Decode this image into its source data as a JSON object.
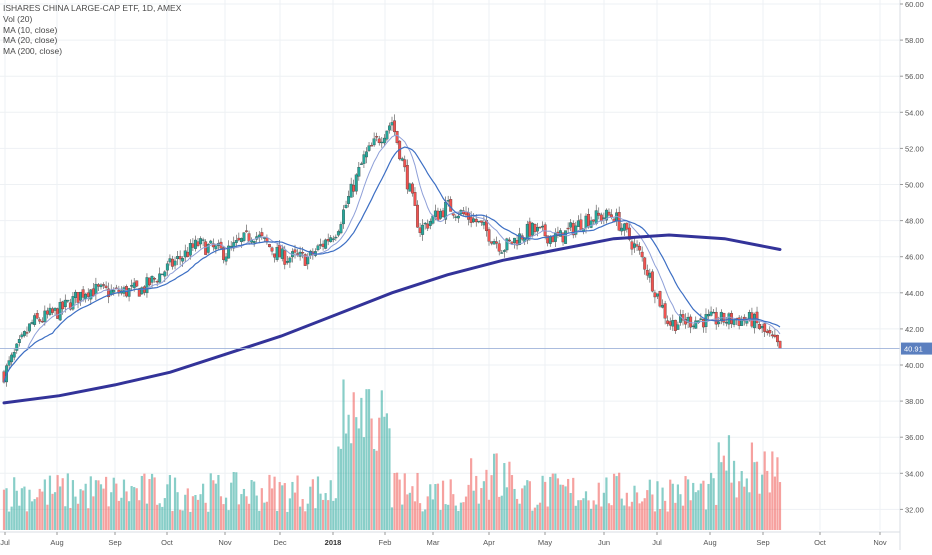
{
  "chart_data": {
    "type": "candlestick",
    "title": "ISHARES CHINA LARGE-CAP ETF, 1D, AMEX",
    "legend": [
      "Vol (20)",
      "MA (10, close)",
      "MA (20, close)",
      "MA (200, close)"
    ],
    "price_axis": {
      "min": 39,
      "max": 60.4,
      "ticks": [
        "40.00",
        "42.00",
        "44.00",
        "46.00",
        "48.00",
        "50.00",
        "52.00",
        "54.00",
        "56.00",
        "58.00",
        "60.00"
      ],
      "secondary_ticks": [
        "32.00",
        "34.00",
        "36.00",
        "38.00"
      ]
    },
    "last_price_label": "40.91",
    "last_price": 40.91,
    "x_axis_labels": [
      "Jul",
      "Aug",
      "Sep",
      "Oct",
      "Nov",
      "Dec",
      "2018",
      "Feb",
      "Mar",
      "Apr",
      "May",
      "Jun",
      "Jul",
      "Aug",
      "Sep",
      "Oct",
      "Nov"
    ],
    "monthly_close_path": [
      [
        "Jul",
        39.5
      ],
      [
        "Jul",
        42.3
      ],
      [
        "Aug",
        43.0
      ],
      [
        "Aug",
        44.2
      ],
      [
        "Sep",
        44.0
      ],
      [
        "Sep",
        44.2
      ],
      [
        "Oct",
        45.5
      ],
      [
        "Oct",
        46.7
      ],
      [
        "Nov",
        46.2
      ],
      [
        "Nov",
        47.3
      ],
      [
        "Dec",
        46.0
      ],
      [
        "Dec",
        45.9
      ],
      [
        "2018",
        47.5
      ],
      [
        "2018",
        51.5
      ],
      [
        "Feb",
        53.5
      ],
      [
        "Feb",
        47.5
      ],
      [
        "Mar",
        48.8
      ],
      [
        "Mar",
        48.0
      ],
      [
        "Apr",
        46.5
      ],
      [
        "Apr",
        47.5
      ],
      [
        "May",
        47.0
      ],
      [
        "May",
        48.1
      ],
      [
        "Jun",
        48.3
      ],
      [
        "Jun",
        46.0
      ],
      [
        "Jul",
        42.3
      ],
      [
        "Jul",
        42.5
      ],
      [
        "Aug",
        42.5
      ],
      [
        "Aug",
        42.5
      ],
      [
        "Sep",
        40.9
      ]
    ],
    "ma200_path": [
      [
        "Jul",
        37.9
      ],
      [
        "Aug",
        38.3
      ],
      [
        "Sep",
        38.9
      ],
      [
        "Oct",
        39.6
      ],
      [
        "Nov",
        40.6
      ],
      [
        "Dec",
        41.6
      ],
      [
        "2018",
        42.8
      ],
      [
        "Feb",
        44.0
      ],
      [
        "Mar",
        45.0
      ],
      [
        "Apr",
        45.8
      ],
      [
        "May",
        46.4
      ],
      [
        "Jun",
        47.0
      ],
      [
        "Jul",
        47.2
      ],
      [
        "Aug",
        47.0
      ],
      [
        "Sep",
        46.4
      ]
    ],
    "colors": {
      "up": "#26a69a",
      "down": "#ef5350",
      "ma10": "#8fa0d8",
      "ma20": "#3d6fc4",
      "ma200": "#333399",
      "last_price_badge": "#5b7fbf"
    }
  }
}
